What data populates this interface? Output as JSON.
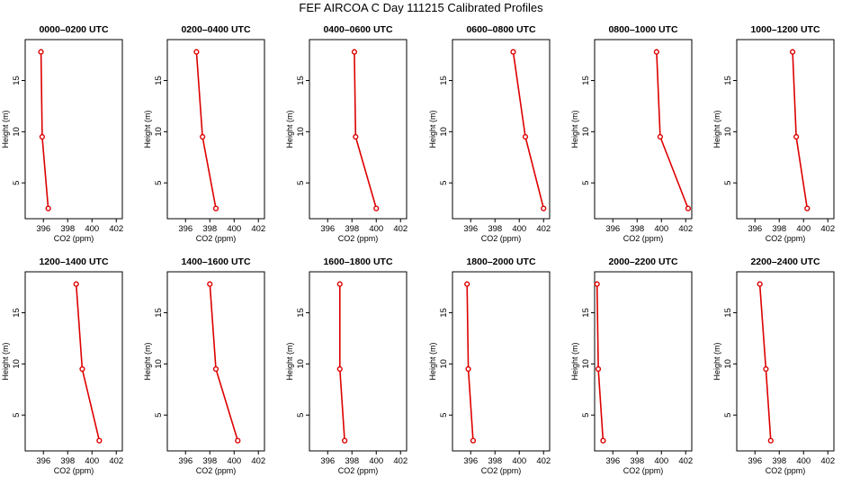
{
  "figure": {
    "title": "FEF AIRCOA C  Day 111215  Calibrated Profiles"
  },
  "chart_data": [
    {
      "type": "line",
      "title": "0000–0200 UTC",
      "xlabel": "CO2 (ppm)",
      "ylabel": "Height (m)",
      "xlim": [
        394.5,
        402.5
      ],
      "ylim": [
        1.5,
        19
      ],
      "xticks": [
        396,
        398,
        400,
        402
      ],
      "yticks": [
        5,
        10,
        15
      ],
      "grid": false,
      "series": [
        {
          "color": "#dd0000",
          "x": [
            395.8,
            395.9,
            396.4
          ],
          "y": [
            17.8,
            9.5,
            2.5
          ]
        }
      ]
    },
    {
      "type": "line",
      "title": "0200–0400 UTC",
      "xlabel": "CO2 (ppm)",
      "ylabel": "Height (m)",
      "xlim": [
        394.5,
        402.5
      ],
      "ylim": [
        1.5,
        19
      ],
      "xticks": [
        396,
        398,
        400,
        402
      ],
      "yticks": [
        5,
        10,
        15
      ],
      "grid": false,
      "series": [
        {
          "color": "#dd0000",
          "x": [
            396.9,
            397.4,
            398.5
          ],
          "y": [
            17.8,
            9.5,
            2.5
          ]
        }
      ]
    },
    {
      "type": "line",
      "title": "0400–0600 UTC",
      "xlabel": "CO2 (ppm)",
      "ylabel": "Height (m)",
      "xlim": [
        394.5,
        402.5
      ],
      "ylim": [
        1.5,
        19
      ],
      "xticks": [
        396,
        398,
        400,
        402
      ],
      "yticks": [
        5,
        10,
        15
      ],
      "grid": false,
      "series": [
        {
          "color": "#dd0000",
          "x": [
            398.2,
            398.3,
            400.0
          ],
          "y": [
            17.8,
            9.5,
            2.5
          ]
        }
      ]
    },
    {
      "type": "line",
      "title": "0600–0800 UTC",
      "xlabel": "CO2 (ppm)",
      "ylabel": "Height (m)",
      "xlim": [
        394.5,
        402.5
      ],
      "ylim": [
        1.5,
        19
      ],
      "xticks": [
        396,
        398,
        400,
        402
      ],
      "yticks": [
        5,
        10,
        15
      ],
      "grid": false,
      "series": [
        {
          "color": "#dd0000",
          "x": [
            399.5,
            400.5,
            402.0
          ],
          "y": [
            17.8,
            9.5,
            2.5
          ]
        }
      ]
    },
    {
      "type": "line",
      "title": "0800–1000 UTC",
      "xlabel": "CO2 (ppm)",
      "ylabel": "Height (m)",
      "xlim": [
        394.5,
        402.5
      ],
      "ylim": [
        1.5,
        19
      ],
      "xticks": [
        396,
        398,
        400,
        402
      ],
      "yticks": [
        5,
        10,
        15
      ],
      "grid": false,
      "series": [
        {
          "color": "#dd0000",
          "x": [
            399.6,
            399.9,
            402.2
          ],
          "y": [
            17.8,
            9.5,
            2.5
          ]
        }
      ]
    },
    {
      "type": "line",
      "title": "1000–1200 UTC",
      "xlabel": "CO2 (ppm)",
      "ylabel": "Height (m)",
      "xlim": [
        394.5,
        402.5
      ],
      "ylim": [
        1.5,
        19
      ],
      "xticks": [
        396,
        398,
        400,
        402
      ],
      "yticks": [
        5,
        10,
        15
      ],
      "grid": false,
      "series": [
        {
          "color": "#dd0000",
          "x": [
            399.1,
            399.4,
            400.3
          ],
          "y": [
            17.8,
            9.5,
            2.5
          ]
        }
      ]
    },
    {
      "type": "line",
      "title": "1200–1400 UTC",
      "xlabel": "CO2 (ppm)",
      "ylabel": "Height (m)",
      "xlim": [
        394.5,
        402.5
      ],
      "ylim": [
        1.5,
        19
      ],
      "xticks": [
        396,
        398,
        400,
        402
      ],
      "yticks": [
        5,
        10,
        15
      ],
      "grid": false,
      "series": [
        {
          "color": "#dd0000",
          "x": [
            398.7,
            399.2,
            400.6
          ],
          "y": [
            17.8,
            9.5,
            2.5
          ]
        }
      ]
    },
    {
      "type": "line",
      "title": "1400–1600 UTC",
      "xlabel": "CO2 (ppm)",
      "ylabel": "Height (m)",
      "xlim": [
        394.5,
        402.5
      ],
      "ylim": [
        1.5,
        19
      ],
      "xticks": [
        396,
        398,
        400,
        402
      ],
      "yticks": [
        5,
        10,
        15
      ],
      "grid": false,
      "series": [
        {
          "color": "#dd0000",
          "x": [
            398.0,
            398.5,
            400.3
          ],
          "y": [
            17.8,
            9.5,
            2.5
          ]
        }
      ]
    },
    {
      "type": "line",
      "title": "1600–1800 UTC",
      "xlabel": "CO2 (ppm)",
      "ylabel": "Height (m)",
      "xlim": [
        394.5,
        402.5
      ],
      "ylim": [
        1.5,
        19
      ],
      "xticks": [
        396,
        398,
        400,
        402
      ],
      "yticks": [
        5,
        10,
        15
      ],
      "grid": false,
      "series": [
        {
          "color": "#dd0000",
          "x": [
            397.0,
            397.0,
            397.4
          ],
          "y": [
            17.8,
            9.5,
            2.5
          ]
        }
      ]
    },
    {
      "type": "line",
      "title": "1800–2000 UTC",
      "xlabel": "CO2 (ppm)",
      "ylabel": "Height (m)",
      "xlim": [
        394.5,
        402.5
      ],
      "ylim": [
        1.5,
        19
      ],
      "xticks": [
        396,
        398,
        400,
        402
      ],
      "yticks": [
        5,
        10,
        15
      ],
      "grid": false,
      "series": [
        {
          "color": "#dd0000",
          "x": [
            395.7,
            395.8,
            396.2
          ],
          "y": [
            17.8,
            9.5,
            2.5
          ]
        }
      ]
    },
    {
      "type": "line",
      "title": "2000–2200 UTC",
      "xlabel": "CO2 (ppm)",
      "ylabel": "Height (m)",
      "xlim": [
        394.5,
        402.5
      ],
      "ylim": [
        1.5,
        19
      ],
      "xticks": [
        396,
        398,
        400,
        402
      ],
      "yticks": [
        5,
        10,
        15
      ],
      "grid": false,
      "series": [
        {
          "color": "#dd0000",
          "x": [
            394.7,
            394.8,
            395.2
          ],
          "y": [
            17.8,
            9.5,
            2.5
          ]
        }
      ]
    },
    {
      "type": "line",
      "title": "2200–2400 UTC",
      "xlabel": "CO2 (ppm)",
      "ylabel": "Height (m)",
      "xlim": [
        394.5,
        402.5
      ],
      "ylim": [
        1.5,
        19
      ],
      "xticks": [
        396,
        398,
        400,
        402
      ],
      "yticks": [
        5,
        10,
        15
      ],
      "grid": false,
      "series": [
        {
          "color": "#dd0000",
          "x": [
            396.4,
            396.9,
            397.3
          ],
          "y": [
            17.8,
            9.5,
            2.5
          ]
        }
      ]
    }
  ]
}
